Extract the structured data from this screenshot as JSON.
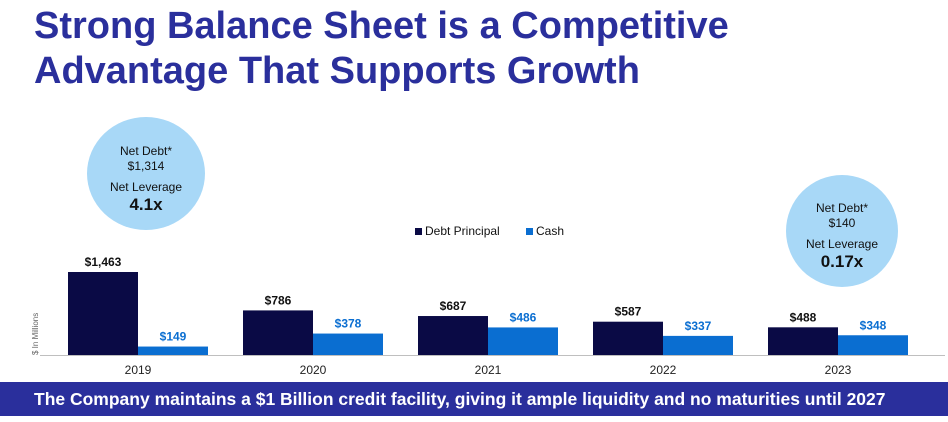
{
  "title": {
    "line1": "Strong Balance Sheet is a Competitive",
    "line2": "Advantage That Supports Growth"
  },
  "callouts": [
    {
      "net_debt_label": "Net Debt*",
      "net_debt_value": "$1,314",
      "leverage_label": "Net Leverage",
      "leverage_value": "4.1x"
    },
    {
      "net_debt_label": "Net Debt*",
      "net_debt_value": "$140",
      "leverage_label": "Net Leverage",
      "leverage_value": "0.17x"
    }
  ],
  "footer": "The Company maintains a $1 Billion credit facility, giving it ample liquidity and no maturities until 2027",
  "colors": {
    "title": "#2a2f9c",
    "debt": "#0a0a45",
    "cash": "#0a6ed1",
    "callout": "#a8d8f7",
    "footer_bg": "#2a2f9c"
  },
  "chart_data": {
    "type": "bar",
    "categories": [
      "2019",
      "2020",
      "2021",
      "2022",
      "2023"
    ],
    "series": [
      {
        "name": "Debt Principal",
        "values": [
          1463,
          786,
          687,
          587,
          488
        ],
        "labels": [
          "$1,463",
          "$786",
          "$687",
          "$587",
          "$488"
        ]
      },
      {
        "name": "Cash",
        "values": [
          149,
          378,
          486,
          337,
          348
        ],
        "labels": [
          "$149",
          "$378",
          "$486",
          "$337",
          "$348"
        ]
      }
    ],
    "ylabel": "$ In Millions",
    "ylim": [
      0,
      1500
    ],
    "legend_position": "top-center",
    "grid": false
  }
}
